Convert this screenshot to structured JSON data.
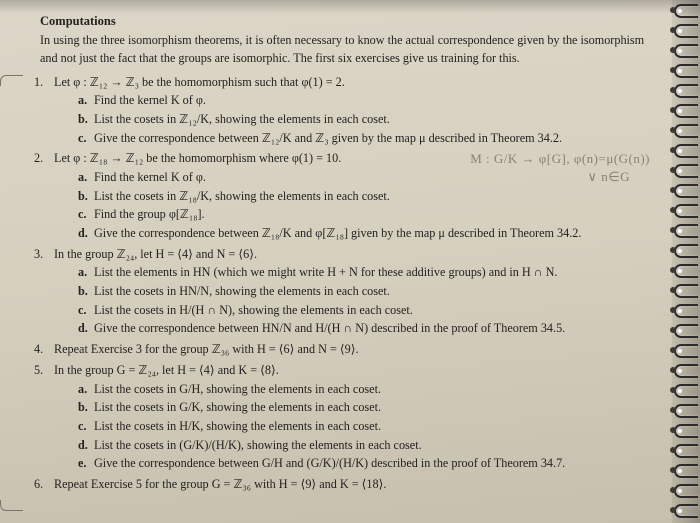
{
  "heading": "Computations",
  "intro": "In using the three isomorphism theorems, it is often necessary to know the actual correspondence given by the isomorphism and not just the fact that the groups are isomorphic. The first six exercises give us training for this.",
  "ex1": {
    "num": "1.",
    "stem": "Let φ : ℤ₁₂ → ℤ₃ be the homomorphism such that φ(1) = 2.",
    "a": "Find the kernel K of φ.",
    "b": "List the cosets in ℤ₁₂/K, showing the elements in each coset.",
    "c": "Give the correspondence between ℤ₁₂/K and ℤ₃ given by the map μ described in Theorem 34.2."
  },
  "ex2": {
    "num": "2.",
    "stem": "Let φ : ℤ₁₈ → ℤ₁₂ be the homomorphism where φ(1) = 10.",
    "a": "Find the kernel K of φ.",
    "b": "List the cosets in ℤ₁₈/K, showing the elements in each coset.",
    "c": "Find the group φ[ℤ₁₈].",
    "d": "Give the correspondence between ℤ₁₈/K and φ[ℤ₁₈] given by the map μ described in Theorem 34.2."
  },
  "ex3": {
    "num": "3.",
    "stem": "In the group ℤ₂₄, let H = ⟨4⟩ and N = ⟨6⟩.",
    "a": "List the elements in HN (which we might write H + N for these additive groups) and in H ∩ N.",
    "b": "List the cosets in HN/N, showing the elements in each coset.",
    "c": "List the cosets in H/(H ∩ N), showing the elements in each coset.",
    "d": "Give the correspondence between HN/N and H/(H ∩ N) described in the proof of Theorem 34.5."
  },
  "ex4": {
    "num": "4.",
    "stem": "Repeat Exercise 3 for the group ℤ₃₆ with H = ⟨6⟩ and N = ⟨9⟩."
  },
  "ex5": {
    "num": "5.",
    "stem": "In the group G = ℤ₂₄, let H = ⟨4⟩ and K = ⟨8⟩.",
    "a": "List the cosets in G/H, showing the elements in each coset.",
    "b": "List the cosets in G/K, showing the elements in each coset.",
    "c": "List the cosets in H/K, showing the elements in each coset.",
    "d": "List the cosets in (G/K)/(H/K), showing the elements in each coset.",
    "e": "Give the correspondence between G/H and (G/K)/(H/K) described in the proof of Theorem 34.7."
  },
  "ex6": {
    "num": "6.",
    "stem": "Repeat Exercise 5 for the group G = ℤ₃₆ with H = ⟨9⟩ and K = ⟨18⟩."
  },
  "handwriting": {
    "line1": "M : G/K → φ[G],  φ(n)=μ(G(n))",
    "line2": "∨ n∈G"
  }
}
